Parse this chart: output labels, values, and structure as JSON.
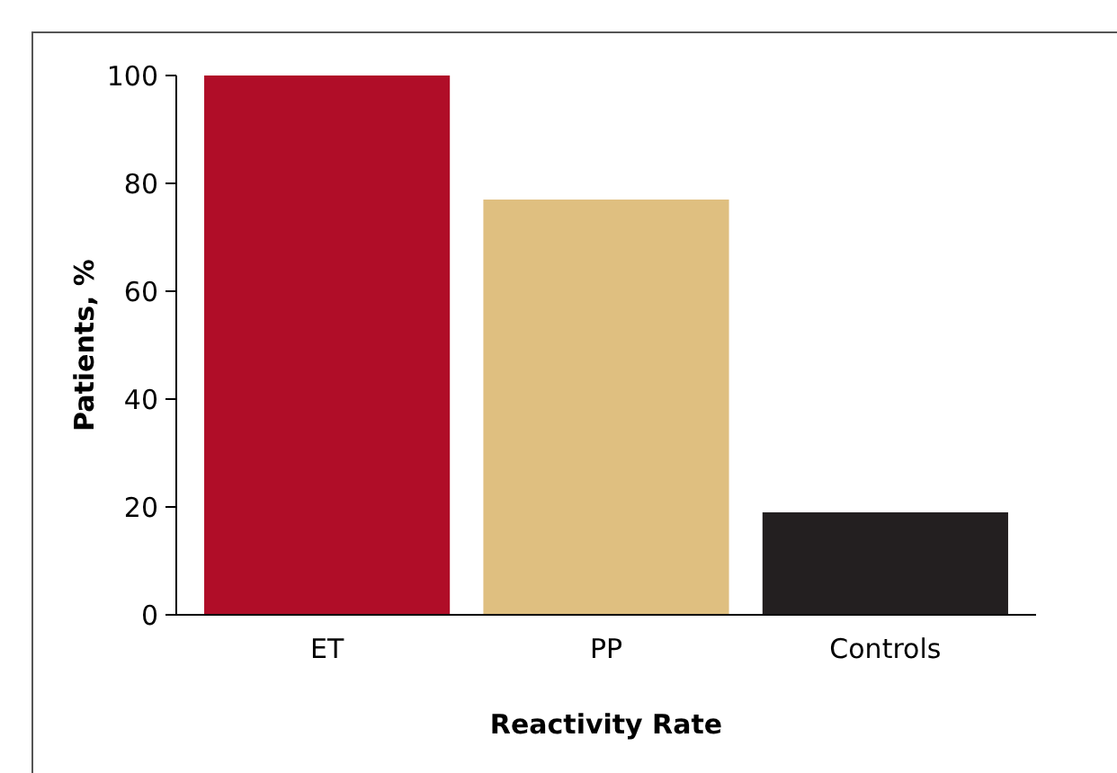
{
  "chart_data": {
    "type": "bar",
    "xlabel": "Reactivity Rate",
    "ylabel": "Patients, %",
    "categories": [
      "ET",
      "PP",
      "Controls"
    ],
    "values": [
      100,
      77,
      19
    ],
    "colors": [
      "#b00d28",
      "#dfbf80",
      "#231f20"
    ],
    "ylim": [
      0,
      100
    ],
    "yticks": [
      0,
      20,
      40,
      60,
      80,
      100
    ],
    "grid": false
  }
}
